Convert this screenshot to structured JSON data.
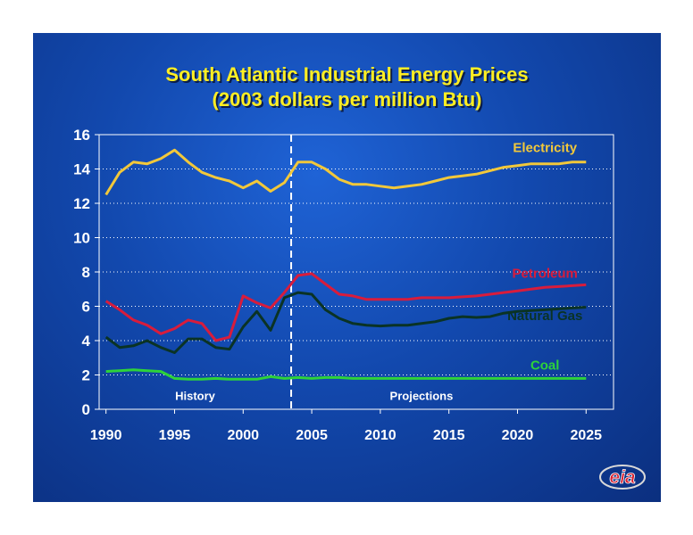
{
  "chart_data": {
    "type": "line",
    "title": "South Atlantic Industrial Energy Prices",
    "subtitle": "(2003 dollars per million Btu)",
    "xlabel": "",
    "ylabel": "",
    "xlim": [
      1989.5,
      2027
    ],
    "ylim": [
      0,
      16
    ],
    "x_ticks": [
      1990,
      1995,
      2000,
      2005,
      2010,
      2015,
      2020,
      2025
    ],
    "y_ticks": [
      0,
      2,
      4,
      6,
      8,
      10,
      12,
      14,
      16
    ],
    "grid": true,
    "divider_x": 2003.5,
    "region_labels": [
      {
        "text": "History",
        "x": 1996.5,
        "y": 0.55
      },
      {
        "text": "Projections",
        "x": 2013,
        "y": 0.55
      }
    ],
    "x": [
      1990,
      1991,
      1992,
      1993,
      1994,
      1995,
      1996,
      1997,
      1998,
      1999,
      2000,
      2001,
      2002,
      2003,
      2004,
      2005,
      2006,
      2007,
      2008,
      2009,
      2010,
      2011,
      2012,
      2013,
      2014,
      2015,
      2016,
      2017,
      2018,
      2019,
      2020,
      2021,
      2022,
      2023,
      2024,
      2025
    ],
    "series": [
      {
        "name": "Electricity",
        "color": "#f2c83a",
        "label_pos": [
          2022,
          15.0
        ],
        "values": [
          12.5,
          13.8,
          14.4,
          14.3,
          14.6,
          15.1,
          14.4,
          13.8,
          13.5,
          13.3,
          12.9,
          13.3,
          12.7,
          13.2,
          14.4,
          14.4,
          14.0,
          13.4,
          13.1,
          13.1,
          13.0,
          12.9,
          13.0,
          13.1,
          13.3,
          13.5,
          13.6,
          13.7,
          13.9,
          14.1,
          14.2,
          14.3,
          14.3,
          14.3,
          14.4,
          14.4
        ]
      },
      {
        "name": "Petroleum",
        "color": "#d81c3c",
        "label_pos": [
          2022,
          7.65
        ],
        "values": [
          6.3,
          5.8,
          5.2,
          4.9,
          4.4,
          4.7,
          5.2,
          5.0,
          4.0,
          4.2,
          6.6,
          6.2,
          5.9,
          6.8,
          7.8,
          7.9,
          7.3,
          6.7,
          6.6,
          6.4,
          6.4,
          6.4,
          6.4,
          6.5,
          6.5,
          6.5,
          6.55,
          6.6,
          6.7,
          6.8,
          6.9,
          7.0,
          7.1,
          7.15,
          7.2,
          7.25
        ]
      },
      {
        "name": "Natural Gas",
        "color": "#0a3325",
        "label_pos": [
          2022,
          5.2
        ],
        "values": [
          4.2,
          3.6,
          3.7,
          4.0,
          3.6,
          3.3,
          4.1,
          4.1,
          3.6,
          3.5,
          4.8,
          5.7,
          4.6,
          6.5,
          6.8,
          6.7,
          5.8,
          5.3,
          5.0,
          4.9,
          4.85,
          4.9,
          4.9,
          5.0,
          5.1,
          5.3,
          5.4,
          5.35,
          5.4,
          5.6,
          5.7,
          5.75,
          5.8,
          5.85,
          5.9,
          5.95
        ]
      },
      {
        "name": "Coal",
        "color": "#2dd23a",
        "label_pos": [
          2022,
          2.3
        ],
        "values": [
          2.2,
          2.25,
          2.3,
          2.25,
          2.2,
          1.8,
          1.75,
          1.75,
          1.8,
          1.75,
          1.75,
          1.75,
          1.9,
          1.8,
          1.85,
          1.8,
          1.85,
          1.85,
          1.8,
          1.8,
          1.8,
          1.8,
          1.8,
          1.8,
          1.8,
          1.8,
          1.8,
          1.8,
          1.8,
          1.8,
          1.8,
          1.8,
          1.8,
          1.8,
          1.8,
          1.8
        ]
      }
    ]
  },
  "logo": {
    "text": "eia",
    "color": "#d81c2c"
  }
}
